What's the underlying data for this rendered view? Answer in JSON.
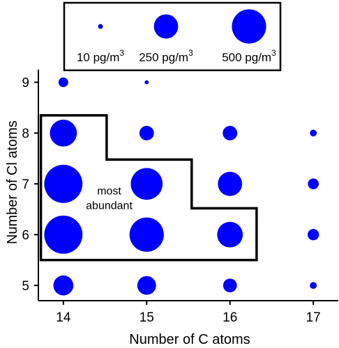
{
  "chart_data": {
    "type": "scatter",
    "subtype": "bubble",
    "xlabel": "Number of C atoms",
    "ylabel": "Number of Cl atoms",
    "x_ticks": [
      14,
      15,
      16,
      17
    ],
    "y_ticks": [
      5,
      6,
      7,
      8,
      9
    ],
    "xlim": [
      13.7,
      17.3
    ],
    "ylim": [
      4.7,
      9.25
    ],
    "size_unit": "pg/m³",
    "color": "#0000ff",
    "grid": false,
    "legend_position": "top",
    "legend": [
      {
        "size": 10,
        "label": "10 pg/m",
        "sup": "3"
      },
      {
        "size": 250,
        "label": "250 pg/m",
        "sup": "3"
      },
      {
        "size": 500,
        "label": "500 pg/m",
        "sup": "3"
      }
    ],
    "points": [
      {
        "x": 14,
        "y": 5,
        "size": 170
      },
      {
        "x": 14,
        "y": 6,
        "size": 620
      },
      {
        "x": 14,
        "y": 7,
        "size": 620
      },
      {
        "x": 14,
        "y": 8,
        "size": 310
      },
      {
        "x": 14,
        "y": 9,
        "size": 40
      },
      {
        "x": 15,
        "y": 5,
        "size": 150
      },
      {
        "x": 15,
        "y": 6,
        "size": 500
      },
      {
        "x": 15,
        "y": 7,
        "size": 430
      },
      {
        "x": 15,
        "y": 8,
        "size": 90
      },
      {
        "x": 15,
        "y": 9,
        "size": 7
      },
      {
        "x": 16,
        "y": 5,
        "size": 80
      },
      {
        "x": 16,
        "y": 6,
        "size": 280
      },
      {
        "x": 16,
        "y": 7,
        "size": 250
      },
      {
        "x": 16,
        "y": 8,
        "size": 90
      },
      {
        "x": 17,
        "y": 5,
        "size": 20
      },
      {
        "x": 17,
        "y": 6,
        "size": 55
      },
      {
        "x": 17,
        "y": 7,
        "size": 50
      },
      {
        "x": 17,
        "y": 8,
        "size": 20
      }
    ],
    "annotation": {
      "text_lines": [
        "most",
        "abundant"
      ],
      "outline": [
        [
          13.73,
          8.35
        ],
        [
          14.52,
          8.35
        ],
        [
          14.52,
          7.48
        ],
        [
          15.54,
          7.48
        ],
        [
          15.54,
          6.52
        ],
        [
          16.32,
          6.52
        ],
        [
          16.32,
          5.5
        ],
        [
          13.73,
          5.5
        ]
      ],
      "text_pos": [
        14.55,
        6.79
      ]
    }
  }
}
